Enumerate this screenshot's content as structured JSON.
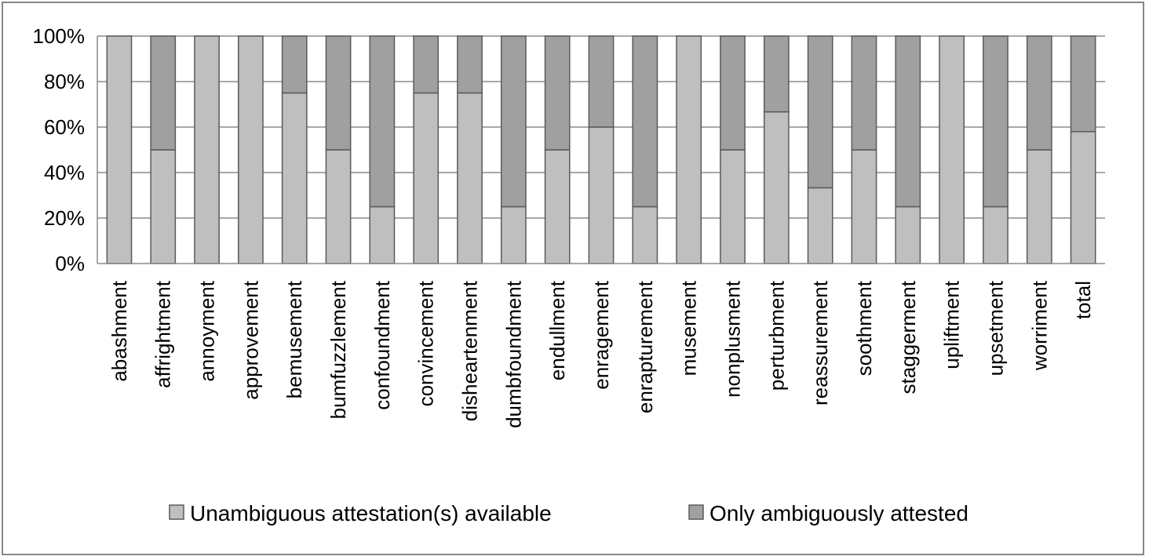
{
  "chart_data": {
    "type": "bar",
    "stacked": "percent",
    "title": "",
    "xlabel": "",
    "ylabel": "",
    "ylim": [
      0,
      100
    ],
    "yticks": [
      "0%",
      "20%",
      "40%",
      "60%",
      "80%",
      "100%"
    ],
    "grid": true,
    "legend_position": "bottom",
    "categories": [
      "abashment",
      "affrightment",
      "annoyment",
      "approvement",
      "bemusement",
      "bumfuzzlement",
      "confoundment",
      "convincement",
      "disheartenment",
      "dumbfoundment",
      "endullment",
      "enragement",
      "enrapturement",
      "musement",
      "nonplusment",
      "perturbment",
      "reassurement",
      "soothment",
      "staggerment",
      "upliftment",
      "upsetment",
      "worriment",
      "total"
    ],
    "series": [
      {
        "name": "Unambiguous attestation(s) available",
        "color": "#bfbfbf",
        "values": [
          100,
          50,
          100,
          100,
          75,
          50,
          25,
          75,
          75,
          25,
          50,
          60,
          25,
          100,
          50,
          66.7,
          33.3,
          50,
          25,
          100,
          25,
          50,
          58
        ]
      },
      {
        "name": "Only ambiguously attested",
        "color": "#a0a0a0",
        "values": [
          0,
          50,
          0,
          0,
          25,
          50,
          75,
          25,
          25,
          75,
          50,
          40,
          75,
          0,
          50,
          33.3,
          66.7,
          50,
          75,
          0,
          75,
          50,
          42
        ]
      }
    ]
  }
}
